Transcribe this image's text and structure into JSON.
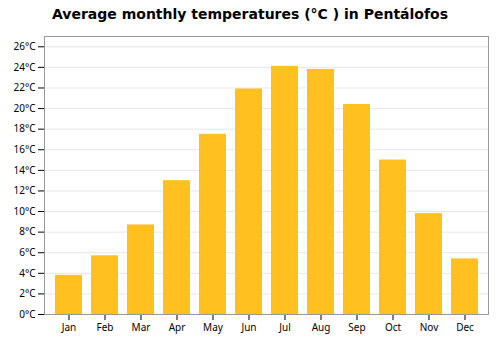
{
  "chart_data": {
    "type": "bar",
    "title": "Average monthly temperatures (°C ) in Pentálofos",
    "categories": [
      "Jan",
      "Feb",
      "Mar",
      "Apr",
      "May",
      "Jun",
      "Jul",
      "Aug",
      "Sep",
      "Oct",
      "Nov",
      "Dec"
    ],
    "values": [
      3.8,
      5.7,
      8.7,
      13.0,
      17.5,
      21.9,
      24.1,
      23.8,
      20.4,
      15.0,
      9.8,
      5.4
    ],
    "color": "#FFC020",
    "ylim": [
      0,
      27
    ],
    "yticks": [
      {
        "value": 0,
        "label": "0°C"
      },
      {
        "value": 2,
        "label": "2°C"
      },
      {
        "value": 4,
        "label": "4°C"
      },
      {
        "value": 6,
        "label": "6°C"
      },
      {
        "value": 8,
        "label": "8°C"
      },
      {
        "value": 10,
        "label": "10°C"
      },
      {
        "value": 12,
        "label": "12°C"
      },
      {
        "value": 14,
        "label": "14°C"
      },
      {
        "value": 16,
        "label": "16°C"
      },
      {
        "value": 18,
        "label": "18°C"
      },
      {
        "value": 20,
        "label": "20°C"
      },
      {
        "value": 22,
        "label": "22°C"
      },
      {
        "value": 24,
        "label": "24°C"
      },
      {
        "value": 26,
        "label": "26°C"
      }
    ],
    "grid": true
  }
}
